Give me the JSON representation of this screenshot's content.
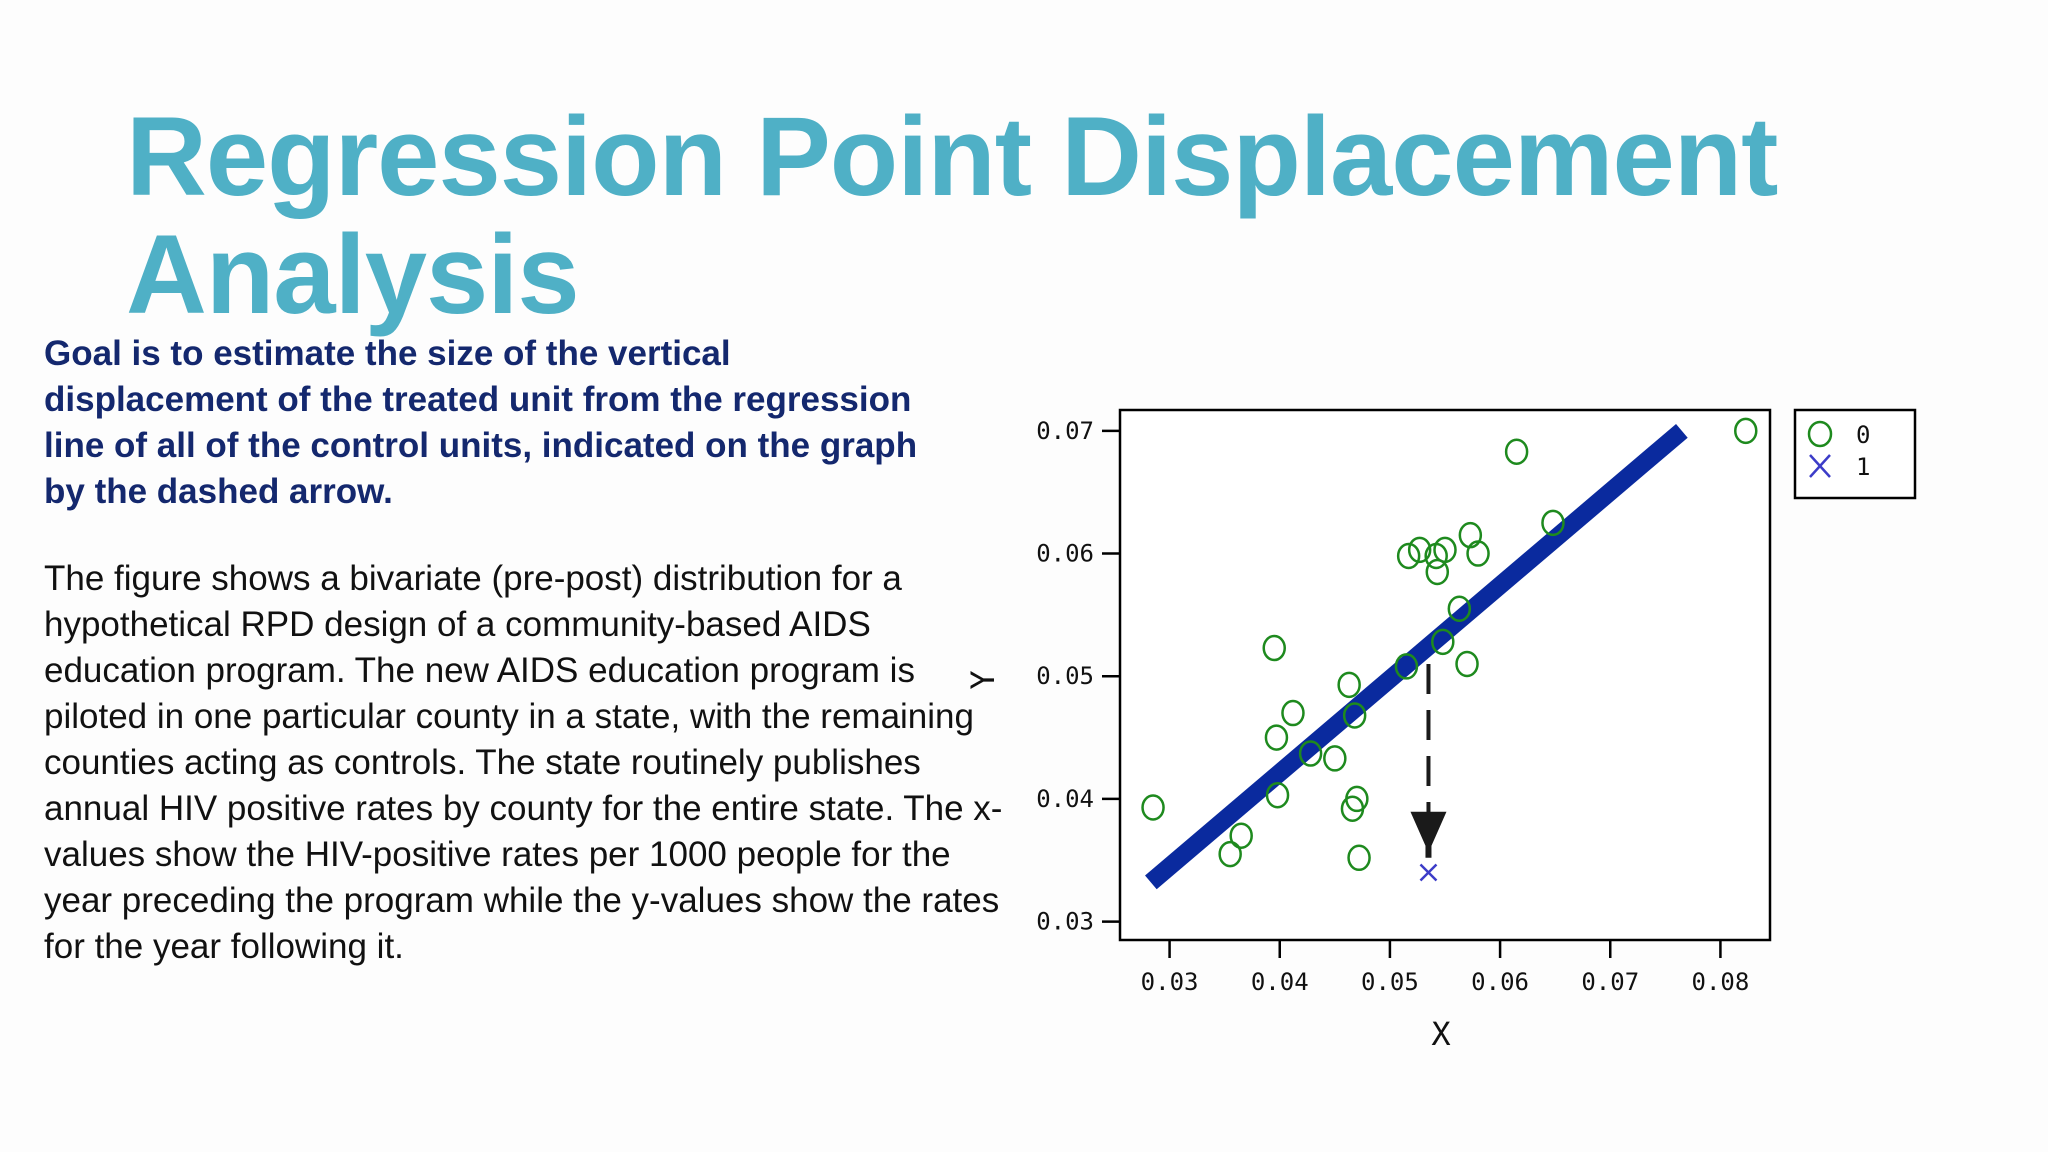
{
  "slide": {
    "title_line1": "Regression Point Displacement",
    "title_line2": "Analysis",
    "goal": "Goal is to estimate the size of the vertical displacement of the treated unit from the regression line of all of the control units, indicated on the graph by the dashed arrow.",
    "description": "The figure shows a bivariate (pre-post) distribution for a hypothetical RPD design of a community-based AIDS education program. The new AIDS education program is piloted in one particular county in a state, with the remaining counties acting as controls. The state routinely publishes annual HIV positive rates by county for the entire state. The x-values show the HIV-positive rates per 1000 people for the year preceding the program while the y-values show the rates for the year following it."
  },
  "chart_data": {
    "type": "scatter",
    "xlabel": "X",
    "ylabel": "Y",
    "xlim": [
      0.0255,
      0.0845
    ],
    "ylim": [
      0.0285,
      0.0717
    ],
    "xticks": [
      0.03,
      0.04,
      0.05,
      0.06,
      0.07,
      0.08
    ],
    "yticks": [
      0.03,
      0.04,
      0.05,
      0.06,
      0.07
    ],
    "xtick_labels": [
      "0.03",
      "0.04",
      "0.05",
      "0.06",
      "0.07",
      "0.08"
    ],
    "ytick_labels": [
      "0.03",
      "0.04",
      "0.05",
      "0.06",
      "0.07"
    ],
    "legend": {
      "position": "outside-top-right",
      "entries": [
        {
          "label": "0",
          "marker": "circle",
          "color": "#1e8a1e"
        },
        {
          "label": "1",
          "marker": "x",
          "color": "#3c3cc8"
        }
      ]
    },
    "series": [
      {
        "name": "0",
        "marker": "circle",
        "color": "#1e8a1e",
        "points": [
          [
            0.0285,
            0.0393
          ],
          [
            0.0355,
            0.0355
          ],
          [
            0.0365,
            0.037
          ],
          [
            0.0395,
            0.0523
          ],
          [
            0.0397,
            0.045
          ],
          [
            0.0398,
            0.0403
          ],
          [
            0.0412,
            0.047
          ],
          [
            0.0428,
            0.0437
          ],
          [
            0.045,
            0.0433
          ],
          [
            0.0463,
            0.0493
          ],
          [
            0.0466,
            0.0392
          ],
          [
            0.0468,
            0.0468
          ],
          [
            0.047,
            0.04
          ],
          [
            0.0472,
            0.0352
          ],
          [
            0.0515,
            0.0508
          ],
          [
            0.0517,
            0.0598
          ],
          [
            0.0527,
            0.0603
          ],
          [
            0.0542,
            0.0598
          ],
          [
            0.0543,
            0.0585
          ],
          [
            0.0548,
            0.0528
          ],
          [
            0.055,
            0.0603
          ],
          [
            0.0563,
            0.0555
          ],
          [
            0.057,
            0.051
          ],
          [
            0.0573,
            0.0615
          ],
          [
            0.058,
            0.06
          ],
          [
            0.0615,
            0.0683
          ],
          [
            0.0648,
            0.0625
          ],
          [
            0.0823,
            0.07
          ]
        ]
      },
      {
        "name": "1",
        "marker": "x",
        "color": "#3c3cc8",
        "points": [
          [
            0.0535,
            0.034
          ]
        ]
      }
    ],
    "regression_line": {
      "x": [
        0.0283,
        0.0765
      ],
      "y": [
        0.0332,
        0.07
      ],
      "color": "#0a2a9e"
    },
    "displacement_arrow": {
      "x": 0.0535,
      "y_from": 0.051,
      "y_to": 0.0352,
      "style": "dashed",
      "color": "#1a1a1a"
    },
    "colors": {
      "frame": "#000000",
      "circle": "#1e8a1e",
      "cross": "#3c3cc8",
      "line": "#0a2a9e"
    }
  }
}
